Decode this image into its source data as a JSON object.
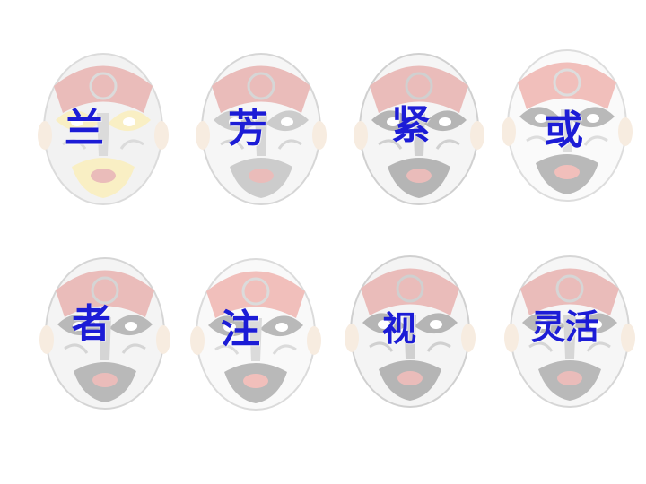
{
  "theme": {
    "text_color": "#1c1cd6",
    "mask_opacity": 0.35
  },
  "masks": [
    {
      "name": "mask-1",
      "icon": "opera-mask-swirl-icon",
      "palette": [
        "#dcdcdc",
        "#9a9a9a",
        "#c4413b",
        "#f0d35a"
      ],
      "label": "兰"
    },
    {
      "name": "mask-2",
      "icon": "opera-mask-icon",
      "palette": [
        "#e8e8e8",
        "#8c8c8c",
        "#c4413b",
        "#707070"
      ],
      "label": "芳"
    },
    {
      "name": "mask-3",
      "icon": "opera-mask-red-icon",
      "palette": [
        "#e4e4e4",
        "#7a7a7a",
        "#c4413b",
        "#2d2d2d"
      ],
      "label": "紧"
    },
    {
      "name": "mask-4",
      "icon": "opera-mask-white-icon",
      "palette": [
        "#f2f2f2",
        "#a0a0a0",
        "#d84a40",
        "#3a3a3a"
      ],
      "label": "或"
    },
    {
      "name": "mask-5",
      "icon": "opera-mask-icon",
      "palette": [
        "#e2e2e2",
        "#8a8a8a",
        "#c4413b",
        "#3a3a3a"
      ],
      "label": "者"
    },
    {
      "name": "mask-6",
      "icon": "opera-mask-white-icon",
      "palette": [
        "#f0f0f0",
        "#9a9a9a",
        "#d84a40",
        "#3a3a3a"
      ],
      "label": "注"
    },
    {
      "name": "mask-7",
      "icon": "opera-mask-red-icon",
      "palette": [
        "#e2e2e2",
        "#7a7a7a",
        "#c4413b",
        "#2f2f2f"
      ],
      "label": "视"
    },
    {
      "name": "mask-8",
      "icon": "opera-mask-icon",
      "palette": [
        "#e8e8e8",
        "#8c8c8c",
        "#c4413b",
        "#3a3a3a"
      ],
      "label": "灵活"
    }
  ]
}
